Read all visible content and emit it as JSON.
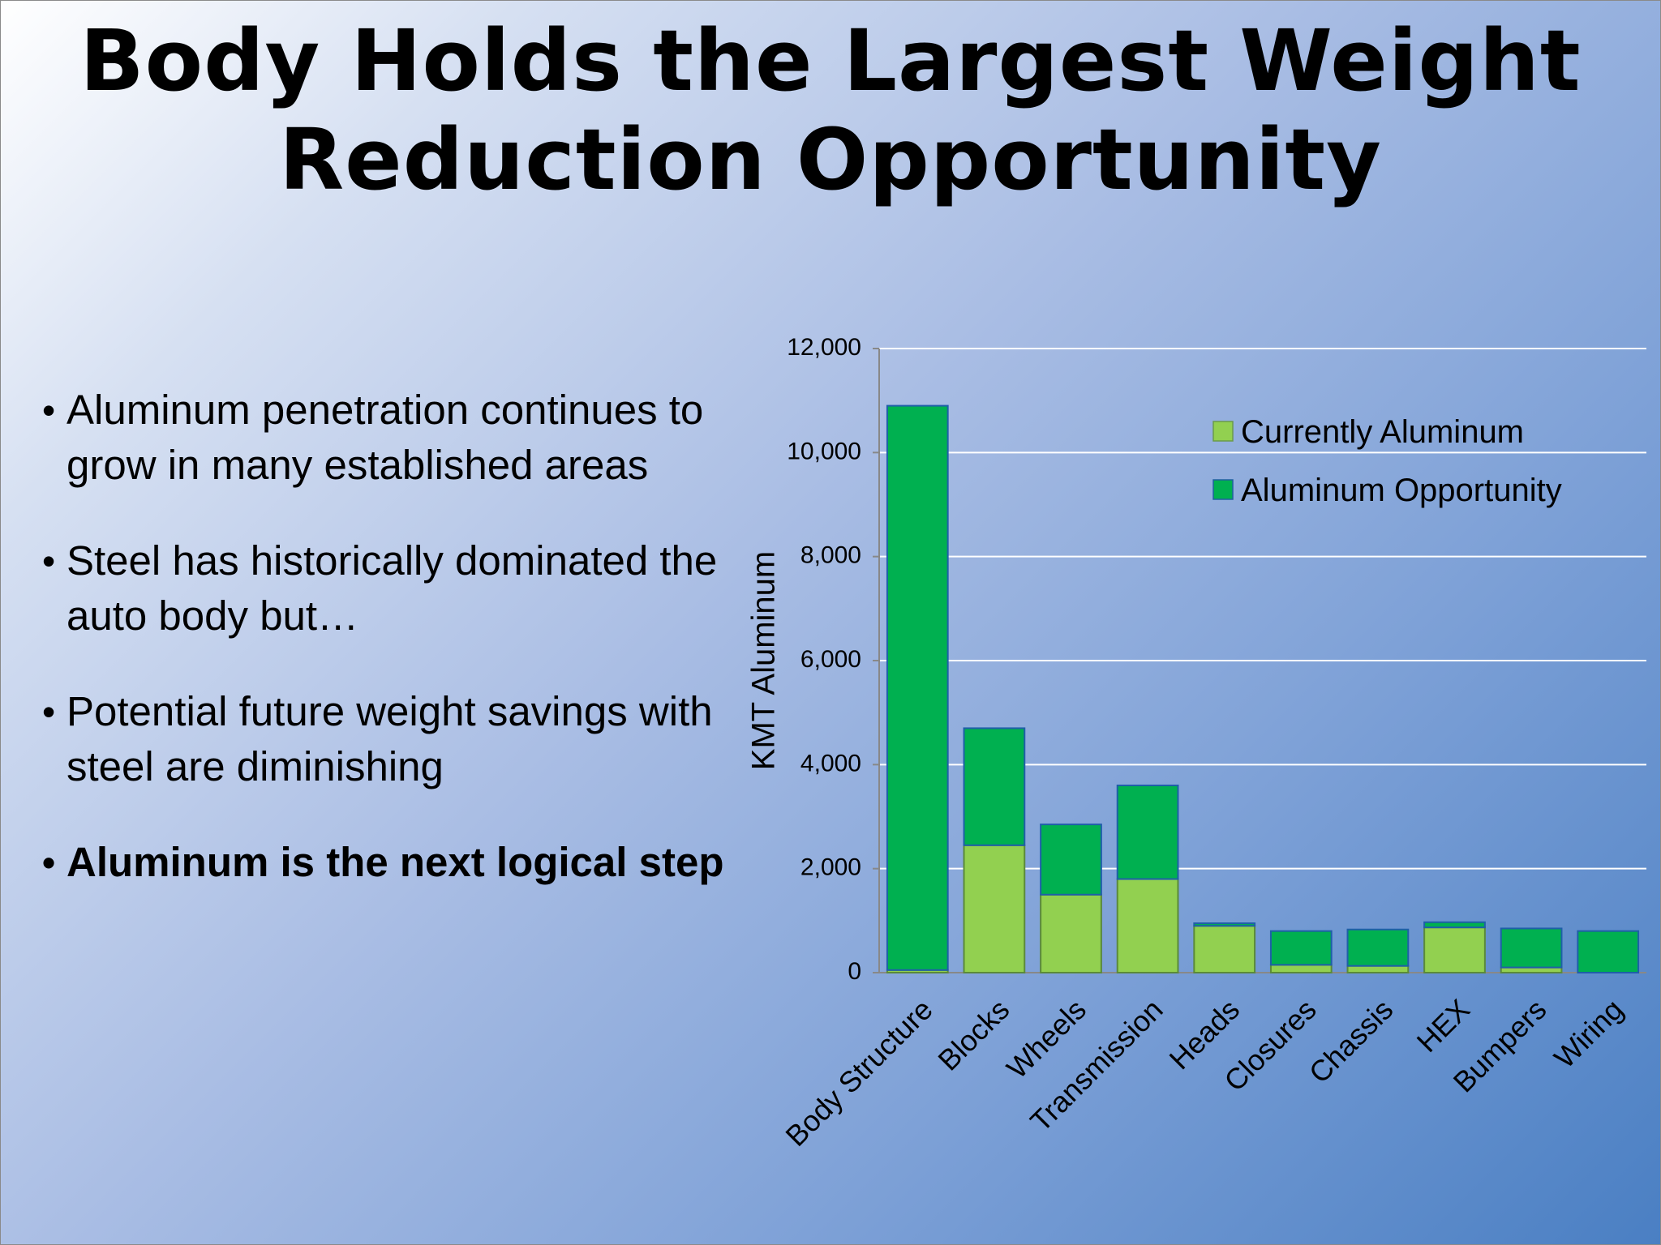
{
  "slide": {
    "title_line1": "Body Holds the Largest Weight",
    "title_line2": "Reduction Opportunity",
    "bullets": [
      "Aluminum penetration continues to grow in many established areas",
      "Steel has historically dominated the auto body but…",
      "Potential future weight savings with steel are diminishing",
      "Aluminum is the next logical step"
    ]
  },
  "chart_data": {
    "type": "bar",
    "stacked": true,
    "title": "",
    "xlabel": "",
    "ylabel": "KMT Aluminum",
    "ylim": [
      0,
      12000
    ],
    "yticks": [
      0,
      2000,
      4000,
      6000,
      8000,
      10000,
      12000
    ],
    "ytick_labels": [
      "0",
      "2,000",
      "4,000",
      "6,000",
      "8,000",
      "10,000",
      "12,000"
    ],
    "grid": true,
    "legend_position": "top-right",
    "categories": [
      "Body Structure",
      "Blocks",
      "Wheels",
      "Transmission",
      "Heads",
      "Closures",
      "Chassis",
      "HEX",
      "Bumpers",
      "Wiring"
    ],
    "series": [
      {
        "name": "Currently Aluminum",
        "color": "#92d050",
        "values": [
          50,
          2450,
          1500,
          1800,
          900,
          150,
          130,
          870,
          100,
          0
        ]
      },
      {
        "name": "Aluminum Opportunity",
        "color": "#00b050",
        "values": [
          10850,
          2250,
          1350,
          1800,
          50,
          650,
          700,
          100,
          750,
          800
        ]
      }
    ]
  }
}
